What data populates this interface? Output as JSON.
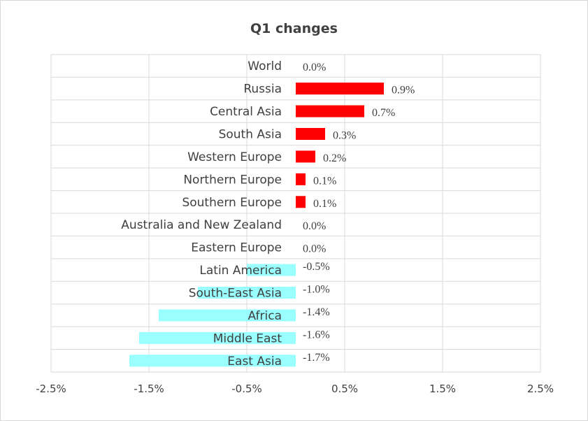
{
  "chart_data": {
    "type": "bar",
    "orientation": "horizontal",
    "title": "Q1 changes",
    "xlabel": "",
    "ylabel": "",
    "xlim": [
      -2.5,
      2.5
    ],
    "x_ticks": [
      -2.5,
      -1.5,
      -0.5,
      0.5,
      1.5,
      2.5
    ],
    "x_tick_labels": [
      "-2.5%",
      "-1.5%",
      "-0.5%",
      "0.5%",
      "1.5%",
      "2.5%"
    ],
    "grid": true,
    "legend": "none",
    "colors": {
      "positive": "#ff0000",
      "negative": "#99ffff",
      "grid": "#d9d9d9",
      "text": "#404040"
    },
    "categories": [
      "World",
      "Russia",
      "Central Asia",
      "South Asia",
      "Western Europe",
      "Northern Europe",
      "Southern Europe",
      "Australia and New Zealand",
      "Eastern Europe",
      "Latin America",
      "South-East Asia",
      "Africa",
      "Middle East",
      "East Asia"
    ],
    "values": [
      0.0,
      0.9,
      0.7,
      0.3,
      0.2,
      0.1,
      0.1,
      0.0,
      0.0,
      -0.5,
      -1.0,
      -1.4,
      -1.6,
      -1.7
    ],
    "value_labels": [
      "0.0%",
      "0.9%",
      "0.7%",
      "0.3%",
      "0.2%",
      "0.1%",
      "0.1%",
      "0.0%",
      "0.0%",
      "-0.5%",
      "-1.0%",
      "-1.4%",
      "-1.6%",
      "-1.7%"
    ]
  }
}
